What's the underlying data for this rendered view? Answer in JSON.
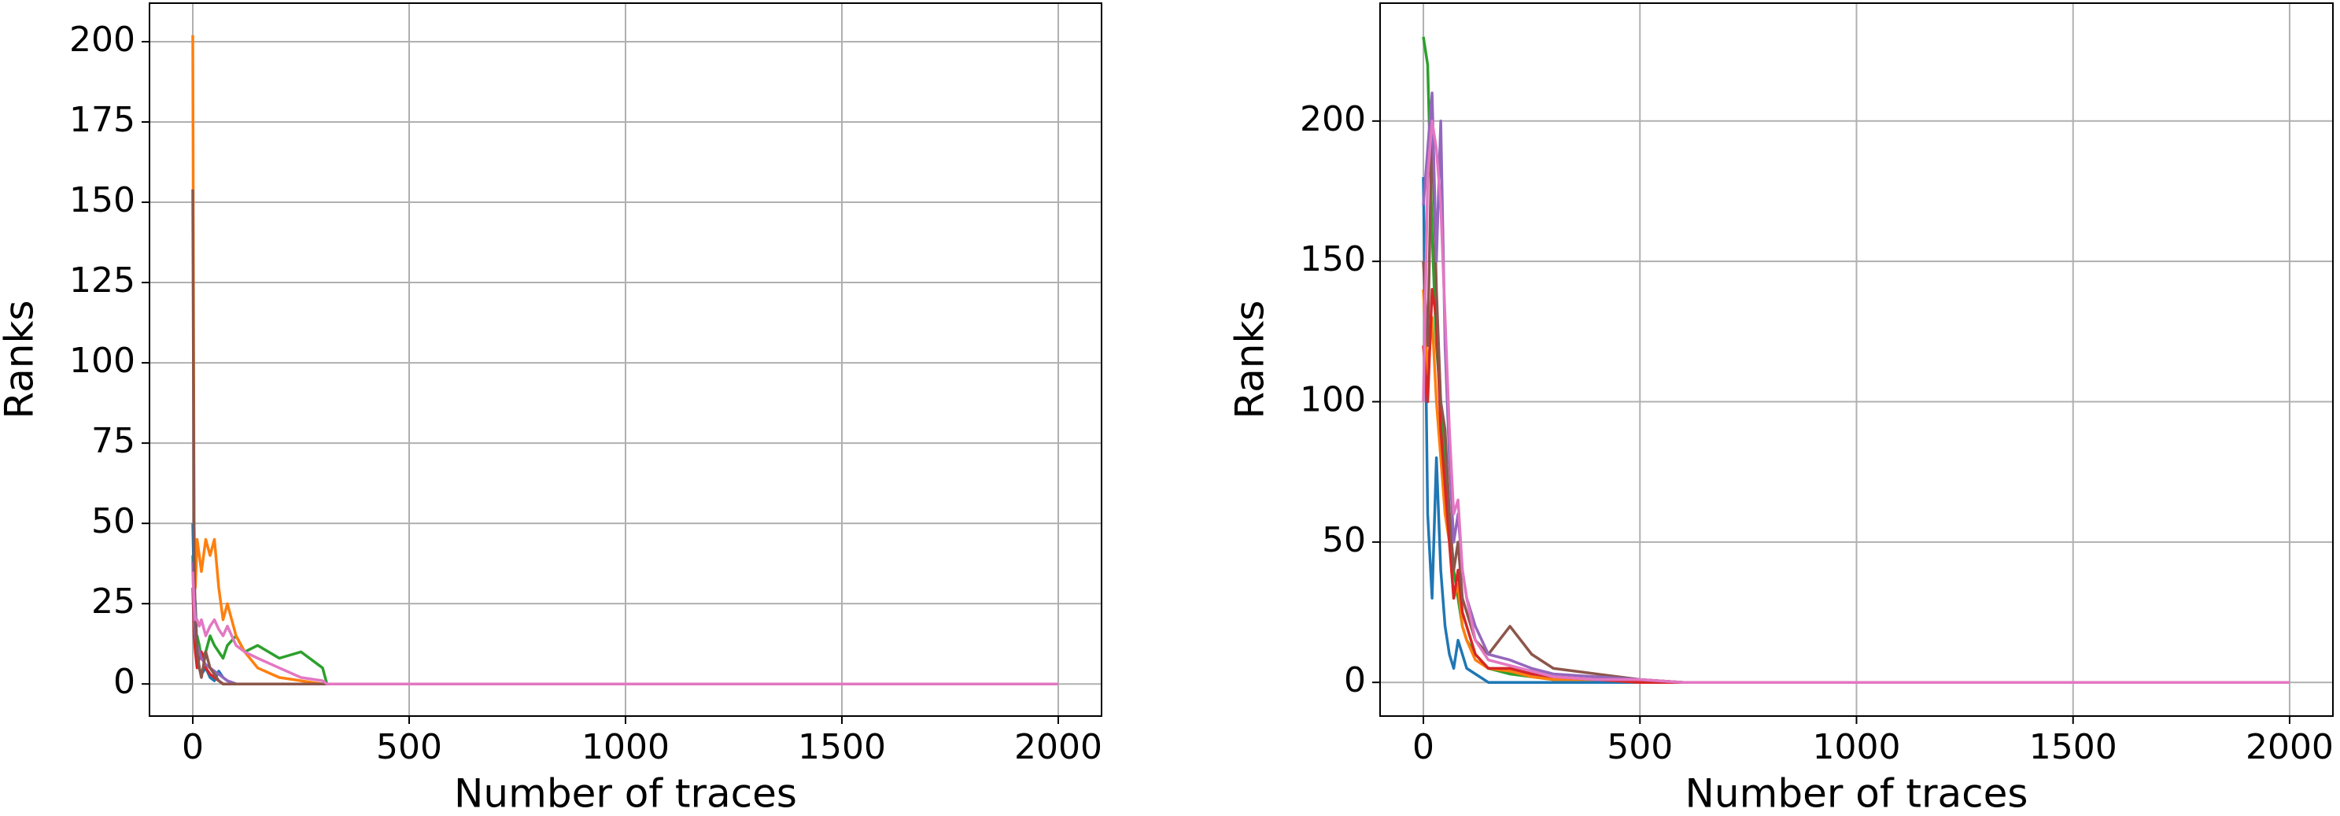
{
  "chart_data": [
    {
      "type": "line",
      "xlabel": "Number of traces",
      "ylabel": "Ranks",
      "grid": true,
      "xlim": [
        -100,
        2100
      ],
      "ylim": [
        -10,
        212
      ],
      "xticks": [
        0,
        500,
        1000,
        1500,
        2000
      ],
      "yticks": [
        0,
        25,
        50,
        75,
        100,
        125,
        150,
        175,
        200
      ],
      "x": [
        0,
        3,
        6,
        10,
        15,
        20,
        30,
        40,
        50,
        60,
        70,
        80,
        100,
        120,
        150,
        200,
        250,
        300,
        310,
        400,
        1000,
        2000
      ],
      "series": [
        {
          "color": "#2ca02c",
          "values": [
            40,
            20,
            10,
            15,
            12,
            8,
            10,
            15,
            12,
            10,
            8,
            12,
            15,
            10,
            12,
            8,
            10,
            5,
            0,
            0,
            0,
            0
          ]
        },
        {
          "color": "#1f77b4",
          "values": [
            50,
            30,
            25,
            10,
            5,
            3,
            5,
            2,
            1,
            4,
            2,
            1,
            0,
            0,
            0,
            0,
            0,
            0,
            0,
            0,
            0,
            0
          ]
        },
        {
          "color": "#d62728",
          "values": [
            30,
            15,
            10,
            5,
            8,
            10,
            5,
            3,
            2,
            1,
            0,
            0,
            0,
            0,
            0,
            0,
            0,
            0,
            0,
            0,
            0,
            0
          ]
        },
        {
          "color": "#9467bd",
          "values": [
            38,
            20,
            15,
            12,
            10,
            8,
            6,
            5,
            4,
            3,
            2,
            1,
            0,
            0,
            0,
            0,
            0,
            0,
            0,
            0,
            0,
            0
          ]
        },
        {
          "color": "#ff7f0e",
          "values": [
            202,
            50,
            30,
            45,
            40,
            35,
            45,
            40,
            45,
            30,
            20,
            25,
            15,
            10,
            5,
            2,
            1,
            0,
            0,
            0,
            0,
            0
          ]
        },
        {
          "color": "#8c564b",
          "values": [
            154,
            40,
            20,
            10,
            5,
            2,
            10,
            5,
            3,
            1,
            0,
            0,
            0,
            0,
            0,
            0,
            0,
            0,
            0,
            0,
            0,
            0
          ]
        },
        {
          "color": "#e377c2",
          "values": [
            35,
            25,
            20,
            20,
            18,
            20,
            15,
            18,
            20,
            17,
            15,
            18,
            12,
            10,
            8,
            5,
            2,
            1,
            0,
            0,
            0,
            0
          ]
        }
      ]
    },
    {
      "type": "line",
      "xlabel": "Number of traces",
      "ylabel": "Ranks",
      "grid": true,
      "xlim": [
        -100,
        2100
      ],
      "ylim": [
        -12,
        242
      ],
      "xticks": [
        0,
        500,
        1000,
        1500,
        2000
      ],
      "yticks": [
        0,
        50,
        100,
        150,
        200
      ],
      "x": [
        0,
        10,
        20,
        30,
        40,
        50,
        60,
        70,
        80,
        90,
        100,
        120,
        150,
        200,
        250,
        300,
        400,
        500,
        600,
        800,
        1000,
        2000
      ],
      "series": [
        {
          "color": "#2ca02c",
          "values": [
            230,
            220,
            160,
            120,
            100,
            80,
            60,
            40,
            30,
            20,
            15,
            10,
            5,
            3,
            2,
            1,
            1,
            1,
            0,
            0,
            0,
            0
          ]
        },
        {
          "color": "#1f77b4",
          "values": [
            180,
            60,
            30,
            80,
            40,
            20,
            10,
            5,
            15,
            10,
            5,
            3,
            0,
            0,
            0,
            0,
            0,
            0,
            0,
            0,
            0,
            0
          ]
        },
        {
          "color": "#ff7f0e",
          "values": [
            140,
            110,
            130,
            100,
            80,
            60,
            50,
            30,
            35,
            20,
            15,
            8,
            5,
            4,
            2,
            1,
            1,
            0,
            0,
            0,
            0,
            0
          ]
        },
        {
          "color": "#d62728",
          "values": [
            120,
            100,
            140,
            130,
            90,
            70,
            50,
            30,
            40,
            25,
            20,
            10,
            5,
            5,
            3,
            2,
            1,
            0,
            0,
            0,
            0,
            0
          ]
        },
        {
          "color": "#8c564b",
          "values": [
            150,
            120,
            200,
            140,
            100,
            90,
            60,
            40,
            50,
            30,
            25,
            15,
            10,
            20,
            10,
            5,
            3,
            1,
            0,
            0,
            0,
            0
          ]
        },
        {
          "color": "#9467bd",
          "values": [
            170,
            190,
            210,
            150,
            200,
            120,
            80,
            50,
            60,
            40,
            30,
            20,
            10,
            8,
            5,
            3,
            2,
            1,
            0,
            0,
            0,
            0
          ]
        },
        {
          "color": "#e377c2",
          "values": [
            100,
            180,
            200,
            190,
            170,
            130,
            90,
            60,
            65,
            40,
            30,
            15,
            8,
            6,
            4,
            2,
            1,
            1,
            0,
            0,
            0,
            0
          ]
        }
      ]
    }
  ]
}
